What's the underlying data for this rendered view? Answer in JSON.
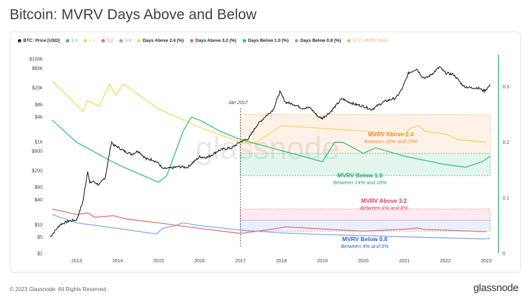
{
  "title": "Bitcoin: MVRV Days Above and Below",
  "footer": {
    "copyright": "© 2023 Glassnode. All Rights Reserved.",
    "brand": "glassnode"
  },
  "watermark": "glassnode",
  "colors": {
    "price": "#1a1a1a",
    "above24": "#f5d75a",
    "above32": "#ef6a6a",
    "below10": "#2fbf7f",
    "below08": "#7fa6e8",
    "mvrv_ratio": "#f0b27a",
    "box_orange": "#f5a35a",
    "box_green": "#2fbf7f",
    "box_pink": "#f06b8d",
    "box_blue": "#6f8fe8",
    "text_orange": "#f08a2a",
    "text_green": "#1fa862",
    "text_pink": "#e8315b",
    "text_blue": "#2f5fd8"
  },
  "chart_data": {
    "type": "line",
    "legend_position": "top",
    "legend": [
      {
        "name": "BTC: Price [USD]",
        "color": "#222222",
        "faint": false
      },
      {
        "name": "1.0",
        "color": "#2fbf7f",
        "faint": true
      },
      {
        "name": "2.4",
        "color": "#f5d75a",
        "faint": true
      },
      {
        "name": "3.2",
        "color": "#ef6a6a",
        "faint": true
      },
      {
        "name": "0.8",
        "color": "#7fa6e8",
        "faint": true
      },
      {
        "name": "Days Above 2.4 (%)",
        "color": "#f5d75a",
        "faint": false
      },
      {
        "name": "Days Above 3.2 (%)",
        "color": "#ef6a6a",
        "faint": false
      },
      {
        "name": "Days Below 1.0 (%)",
        "color": "#2fbf7f",
        "faint": false
      },
      {
        "name": "Days Below 0.8 (%)",
        "color": "#7fa6e8",
        "faint": false
      },
      {
        "name": "BTC: MVRV Ratio",
        "color": "#f0b27a",
        "faint": true
      }
    ],
    "x_ticks": [
      "2013",
      "2014",
      "2015",
      "2016",
      "2017",
      "2018",
      "2019",
      "2020",
      "2021",
      "2022",
      "2023"
    ],
    "xlim": [
      "2012-04",
      "2023-03"
    ],
    "y_left_scale": "log",
    "y_left_ticks": [
      "$2",
      "$5",
      "$10",
      "$40",
      "$80",
      "$200",
      "$600",
      "$1k",
      "$4k",
      "$8k",
      "$20k",
      "$60k",
      "$100k"
    ],
    "y_left_tick_values": [
      2,
      5,
      10,
      40,
      80,
      200,
      600,
      1000,
      4000,
      8000,
      20000,
      60000,
      100000
    ],
    "ylim_left": [
      2,
      100000
    ],
    "y_right_ticks": [
      "0",
      "0.1",
      "0.2",
      "0.3"
    ],
    "y_right_tick_values": [
      0,
      0.1,
      0.2,
      0.3
    ],
    "ylim_right": [
      0,
      0.35
    ],
    "price_series": {
      "name": "BTC: Price [USD]",
      "x": [
        2012.35,
        2012.6,
        2012.8,
        2013.0,
        2013.15,
        2013.27,
        2013.32,
        2013.4,
        2013.55,
        2013.7,
        2013.85,
        2013.92,
        2014.0,
        2014.15,
        2014.35,
        2014.5,
        2014.7,
        2014.85,
        2015.0,
        2015.1,
        2015.3,
        2015.5,
        2015.7,
        2015.85,
        2016.0,
        2016.2,
        2016.45,
        2016.6,
        2016.8,
        2017.0,
        2017.2,
        2017.4,
        2017.6,
        2017.8,
        2017.96,
        2018.1,
        2018.3,
        2018.5,
        2018.7,
        2018.9,
        2019.0,
        2019.2,
        2019.48,
        2019.6,
        2019.8,
        2020.0,
        2020.2,
        2020.5,
        2020.8,
        2020.95,
        2021.1,
        2021.3,
        2021.45,
        2021.55,
        2021.7,
        2021.86,
        2022.0,
        2022.2,
        2022.45,
        2022.6,
        2022.8,
        2022.95,
        2023.1
      ],
      "values": [
        5,
        10,
        12,
        13,
        35,
        200,
        100,
        110,
        90,
        140,
        1000,
        800,
        750,
        600,
        500,
        600,
        380,
        370,
        300,
        220,
        230,
        250,
        240,
        320,
        430,
        420,
        600,
        670,
        720,
        1000,
        1200,
        2500,
        4000,
        6000,
        16000,
        9000,
        8000,
        6500,
        6600,
        4000,
        3700,
        5300,
        11000,
        9500,
        8000,
        7200,
        6000,
        9200,
        11500,
        19000,
        45000,
        58000,
        36000,
        35000,
        45000,
        64000,
        46000,
        42000,
        22000,
        20000,
        20000,
        16800,
        23000
      ]
    },
    "series": [
      {
        "name": "Days Above 2.4 (%)",
        "x": [
          2012.4,
          2012.9,
          2013.15,
          2013.27,
          2013.55,
          2013.8,
          2013.95,
          2014.15,
          2015.0,
          2016.0,
          2017.0,
          2017.3,
          2017.5,
          2017.9,
          2018.0,
          2019.0,
          2020.0,
          2021.0,
          2021.15,
          2021.35,
          2021.5,
          2022.0,
          2022.3,
          2023.0
        ],
        "values": [
          0.31,
          0.275,
          0.255,
          0.275,
          0.265,
          0.305,
          0.285,
          0.305,
          0.26,
          0.227,
          0.2,
          0.198,
          0.205,
          0.225,
          0.23,
          0.225,
          0.22,
          0.215,
          0.225,
          0.23,
          0.22,
          0.215,
          0.205,
          0.2
        ]
      },
      {
        "name": "Days Above 3.2 (%)",
        "x": [
          2012.4,
          2013.0,
          2013.27,
          2013.45,
          2013.9,
          2014.2,
          2015.0,
          2016.0,
          2017.0,
          2017.9,
          2018.1,
          2019.0,
          2020.0,
          2021.1,
          2021.3,
          2021.5,
          2022.0,
          2023.0
        ],
        "values": [
          0.08,
          0.07,
          0.073,
          0.065,
          0.068,
          0.062,
          0.055,
          0.045,
          0.036,
          0.045,
          0.048,
          0.044,
          0.04,
          0.044,
          0.046,
          0.043,
          0.042,
          0.039
        ]
      },
      {
        "name": "Days Below 1.0 (%)",
        "x": [
          2012.4,
          2013.0,
          2014.0,
          2015.0,
          2015.2,
          2015.6,
          2015.8,
          2016.0,
          2016.5,
          2017.0,
          2018.0,
          2019.0,
          2019.3,
          2019.5,
          2020.0,
          2020.3,
          2021.0,
          2022.0,
          2022.5,
          2022.9,
          2023.1
        ],
        "values": [
          0.24,
          0.2,
          0.16,
          0.128,
          0.14,
          0.22,
          0.245,
          0.24,
          0.22,
          0.205,
          0.185,
          0.165,
          0.2,
          0.2,
          0.18,
          0.19,
          0.175,
          0.16,
          0.155,
          0.165,
          0.175
        ]
      },
      {
        "name": "Days Below 0.8 (%)",
        "x": [
          2012.4,
          2013.0,
          2014.0,
          2014.95,
          2015.1,
          2015.4,
          2015.6,
          2016.0,
          2017.0,
          2018.0,
          2019.0,
          2020.0,
          2021.0,
          2022.0,
          2022.9,
          2023.1
        ],
        "values": [
          0.07,
          0.055,
          0.045,
          0.035,
          0.045,
          0.05,
          0.055,
          0.05,
          0.042,
          0.037,
          0.034,
          0.032,
          0.03,
          0.028,
          0.026,
          0.027
        ]
      }
    ],
    "annotations": [
      {
        "label": "Jan 2017",
        "x": 2017.0
      },
      {
        "title": "MVRV Above 2.4",
        "subtitle": "Between 18% and 25%",
        "range": [
          0.18,
          0.25
        ]
      },
      {
        "title": "MVRV Below 1.0",
        "subtitle": "Between 14% and 18%",
        "range": [
          0.14,
          0.18
        ]
      },
      {
        "title": "MVRV Above 3.2",
        "subtitle": "Between 6% and 8%",
        "range": [
          0.06,
          0.08
        ]
      },
      {
        "title": "MVRV Below 0.8",
        "subtitle": "Between 4% and 6%",
        "range": [
          0.04,
          0.06
        ]
      }
    ]
  }
}
